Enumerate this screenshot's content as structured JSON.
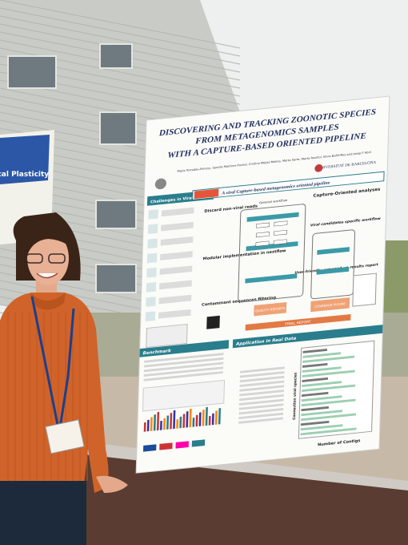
{
  "side_poster": {
    "title": "Ecological Plasticity"
  },
  "poster": {
    "title_lines": [
      "DISCOVERING AND TRACKING ZOONOTIC SPECIES",
      "FROM METAGENOMICS SAMPLES",
      "WITH A CAPTURE-BASED ORIENTED PIPELINE"
    ],
    "authors": "Maria Terradas-Almeny, Sandra Martinez-Puchol, Cristina Mejías-Molina, Marta Itarte, Marta Rusiñol, Sílvia Bofill-Mas and Josep F Abril",
    "institution": "UNIVERSITAT DE BARCELONA",
    "challenges": {
      "title": "Challenges in Viral Metagenomics"
    },
    "pipeline": {
      "title": "A viral Capture-based metagenomics oriented pipeline",
      "general_workflow": "General workflow",
      "discard": "Discard non-viral reads",
      "modular": "Modular implementation in nextflow",
      "contaminant": "Contaminant sequences filtering",
      "capture": "Capture-Oriented analyses",
      "viral_candidates": "Viral candidates specific workflow",
      "report": "User-friendly, wrapped-up results report",
      "quality_reports": "QUALITY REPORTS",
      "coverage_figure": "COVERAGE FIGURE",
      "final_report": "FINAL REPORT"
    },
    "benchmark": {
      "title": "Benchmark"
    },
    "application": {
      "title": "Application in Real Data",
      "y_axis": "Connection viral species",
      "x_axis": "Number of Contigs"
    }
  }
}
